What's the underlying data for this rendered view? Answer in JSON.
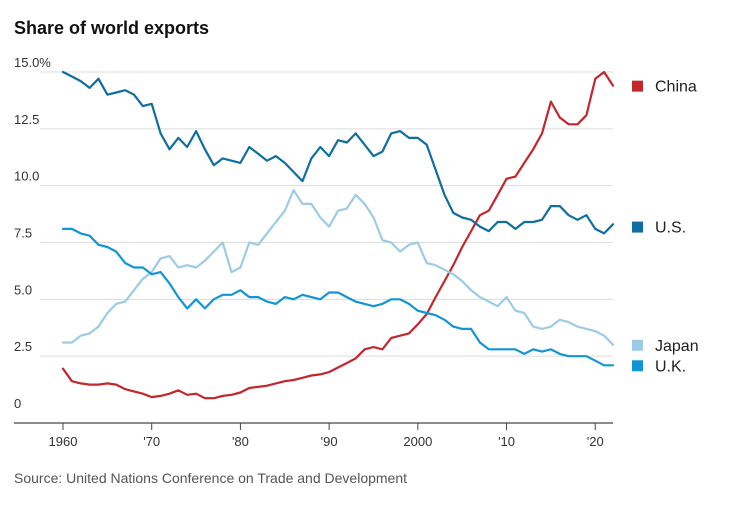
{
  "chart_data": {
    "type": "line",
    "title": "Share of world exports",
    "xlabel": "",
    "ylabel": "",
    "source": "Source: United Nations Conference on Trade and Development",
    "xlim": [
      1960,
      2022
    ],
    "ylim": [
      0,
      15
    ],
    "y_ticks": [
      {
        "value": 15,
        "label": "15.0%"
      },
      {
        "value": 12.5,
        "label": "12.5"
      },
      {
        "value": 10,
        "label": "10.0"
      },
      {
        "value": 7.5,
        "label": "7.5"
      },
      {
        "value": 5,
        "label": "5.0"
      },
      {
        "value": 2.5,
        "label": "2.5"
      },
      {
        "value": 0,
        "label": "0"
      }
    ],
    "x_ticks": [
      {
        "value": 1960,
        "label": "1960"
      },
      {
        "value": 1970,
        "label": "'70"
      },
      {
        "value": 1980,
        "label": "'80"
      },
      {
        "value": 1990,
        "label": "'90"
      },
      {
        "value": 2000,
        "label": "2000"
      },
      {
        "value": 2010,
        "label": "'10"
      },
      {
        "value": 2020,
        "label": "'20"
      }
    ],
    "x": [
      1960,
      1961,
      1962,
      1963,
      1964,
      1965,
      1966,
      1967,
      1968,
      1969,
      1970,
      1971,
      1972,
      1973,
      1974,
      1975,
      1976,
      1977,
      1978,
      1979,
      1980,
      1981,
      1982,
      1983,
      1984,
      1985,
      1986,
      1987,
      1988,
      1989,
      1990,
      1991,
      1992,
      1993,
      1994,
      1995,
      1996,
      1997,
      1998,
      1999,
      2000,
      2001,
      2002,
      2003,
      2004,
      2005,
      2006,
      2007,
      2008,
      2009,
      2010,
      2011,
      2012,
      2013,
      2014,
      2015,
      2016,
      2017,
      2018,
      2019,
      2020,
      2021,
      2022
    ],
    "series": [
      {
        "name": "China",
        "color": "#c2272d",
        "legend_value": 14.4,
        "values": [
          1.95,
          1.4,
          1.3,
          1.25,
          1.25,
          1.3,
          1.25,
          1.05,
          0.95,
          0.85,
          0.7,
          0.75,
          0.85,
          1.0,
          0.8,
          0.85,
          0.65,
          0.65,
          0.75,
          0.8,
          0.9,
          1.1,
          1.15,
          1.2,
          1.3,
          1.4,
          1.45,
          1.55,
          1.65,
          1.7,
          1.8,
          2.0,
          2.2,
          2.4,
          2.8,
          2.9,
          2.8,
          3.3,
          3.4,
          3.5,
          3.9,
          4.35,
          5.1,
          5.8,
          6.5,
          7.3,
          8.0,
          8.7,
          8.9,
          9.6,
          10.3,
          10.4,
          11.0,
          11.6,
          12.3,
          13.7,
          13.0,
          12.7,
          12.7,
          13.1,
          14.7,
          15.0,
          14.4
        ]
      },
      {
        "name": "U.S.",
        "color": "#0e6ea0",
        "legend_value": 8.2,
        "values": [
          15.0,
          14.8,
          14.6,
          14.3,
          14.7,
          14.0,
          14.1,
          14.2,
          14.0,
          13.5,
          13.6,
          12.3,
          11.6,
          12.1,
          11.7,
          12.4,
          11.6,
          10.9,
          11.2,
          11.1,
          11.0,
          11.7,
          11.4,
          11.1,
          11.3,
          11.0,
          10.6,
          10.2,
          11.2,
          11.7,
          11.3,
          12.0,
          11.9,
          12.3,
          11.8,
          11.3,
          11.5,
          12.3,
          12.4,
          12.1,
          12.1,
          11.8,
          10.7,
          9.6,
          8.8,
          8.6,
          8.5,
          8.2,
          8.0,
          8.4,
          8.4,
          8.1,
          8.4,
          8.4,
          8.5,
          9.1,
          9.1,
          8.7,
          8.5,
          8.7,
          8.1,
          7.9,
          8.3
        ]
      },
      {
        "name": "Japan",
        "color": "#9dcbe6",
        "legend_value": 3.0,
        "values": [
          3.1,
          3.1,
          3.4,
          3.5,
          3.8,
          4.4,
          4.8,
          4.9,
          5.4,
          5.9,
          6.2,
          6.8,
          6.9,
          6.4,
          6.5,
          6.4,
          6.7,
          7.1,
          7.5,
          6.2,
          6.4,
          7.5,
          7.4,
          7.9,
          8.4,
          8.9,
          9.8,
          9.2,
          9.2,
          8.6,
          8.2,
          8.9,
          9.0,
          9.6,
          9.2,
          8.6,
          7.6,
          7.5,
          7.1,
          7.4,
          7.5,
          6.6,
          6.5,
          6.3,
          6.1,
          5.8,
          5.4,
          5.1,
          4.9,
          4.7,
          5.1,
          4.5,
          4.4,
          3.8,
          3.7,
          3.8,
          4.1,
          4.0,
          3.8,
          3.7,
          3.6,
          3.4,
          3.0
        ]
      },
      {
        "name": "U.K.",
        "color": "#1195d6",
        "legend_value": 2.1,
        "values": [
          8.1,
          8.1,
          7.9,
          7.8,
          7.4,
          7.3,
          7.1,
          6.6,
          6.4,
          6.4,
          6.1,
          6.2,
          5.7,
          5.1,
          4.6,
          5.0,
          4.6,
          5.0,
          5.2,
          5.2,
          5.4,
          5.1,
          5.1,
          4.9,
          4.8,
          5.1,
          5.0,
          5.2,
          5.1,
          5.0,
          5.3,
          5.3,
          5.1,
          4.9,
          4.8,
          4.7,
          4.8,
          5.0,
          5.0,
          4.8,
          4.5,
          4.4,
          4.3,
          4.1,
          3.8,
          3.7,
          3.7,
          3.1,
          2.8,
          2.8,
          2.8,
          2.8,
          2.6,
          2.8,
          2.7,
          2.8,
          2.6,
          2.5,
          2.5,
          2.5,
          2.3,
          2.1,
          2.1
        ]
      }
    ]
  }
}
